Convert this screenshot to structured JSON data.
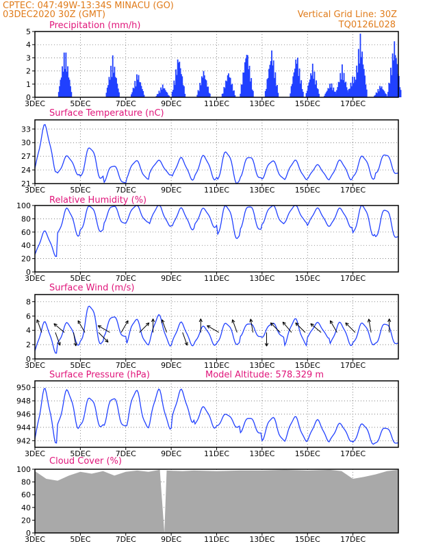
{
  "header": {
    "line1": "CPTEC:   047:49W-13:34S   MINACU (GO)",
    "line2": "03DEC2020 30Z (GMT)",
    "grid_note": "Vertical Grid Line: 30Z",
    "run_code": "TQ0126L028",
    "model_altitude": "Model Altitude: 578.329 m"
  },
  "x_axis": {
    "ticks": [
      "3DEC",
      "5DEC",
      "7DEC",
      "9DEC",
      "11DEC",
      "13DEC",
      "15DEC",
      "17DEC"
    ],
    "tick_days": [
      0,
      2,
      4,
      6,
      8,
      10,
      12,
      14
    ],
    "range_days": [
      0,
      16
    ],
    "grid": true
  },
  "colors": {
    "line": "#2040ff",
    "bars": "#2040ff",
    "cloud": "#a9a9a9",
    "header": "#e07b1a",
    "title": "#e0157a",
    "arrow": "#000000"
  },
  "chart_data": [
    {
      "type": "bar",
      "title": "Precipitation (mm/h)",
      "ylim": [
        0,
        5
      ],
      "yticks": [
        "0",
        "1",
        "2",
        "3",
        "4",
        "5"
      ],
      "bursts": [
        {
          "day": 1.3,
          "peak": 3.9
        },
        {
          "day": 3.4,
          "peak": 3.2
        },
        {
          "day": 4.5,
          "peak": 2.0
        },
        {
          "day": 5.6,
          "peak": 1.0
        },
        {
          "day": 6.3,
          "peak": 3.4
        },
        {
          "day": 7.4,
          "peak": 2.2
        },
        {
          "day": 8.5,
          "peak": 2.1
        },
        {
          "day": 9.3,
          "peak": 3.9
        },
        {
          "day": 10.4,
          "peak": 3.8
        },
        {
          "day": 11.5,
          "peak": 3.5
        },
        {
          "day": 12.2,
          "peak": 2.6
        },
        {
          "day": 13.0,
          "peak": 1.2
        },
        {
          "day": 13.5,
          "peak": 2.5
        },
        {
          "day": 14.0,
          "peak": 1.8
        },
        {
          "day": 14.3,
          "peak": 4.9
        },
        {
          "day": 15.2,
          "peak": 1.0
        },
        {
          "day": 15.8,
          "peak": 4.5
        }
      ]
    },
    {
      "type": "line",
      "title": "Surface Temperature (nC)",
      "ylim": [
        21,
        35
      ],
      "yticks": [
        "21",
        "24",
        "27",
        "30",
        "33"
      ],
      "diurnal": {
        "min": [
          24,
          23,
          22,
          21,
          22,
          23,
          22,
          22,
          21,
          22,
          22,
          22,
          22,
          22,
          22,
          23
        ],
        "max": [
          33.5,
          27,
          29,
          25,
          26,
          26,
          26.5,
          27,
          28,
          27,
          26,
          26,
          25,
          26,
          27,
          27.5
        ]
      }
    },
    {
      "type": "line",
      "title": "Relative Humidity (%)",
      "ylim": [
        0,
        100
      ],
      "yticks": [
        "0",
        "20",
        "40",
        "60",
        "80",
        "100"
      ],
      "diurnal": {
        "min": [
          25,
          55,
          60,
          72,
          75,
          70,
          65,
          68,
          50,
          62,
          72,
          75,
          70,
          68,
          55,
          50
        ],
        "max": [
          60,
          95,
          100,
          100,
          100,
          100,
          95,
          95,
          100,
          100,
          100,
          100,
          95,
          95,
          100,
          95
        ]
      }
    },
    {
      "type": "line",
      "title": "Surface Wind (m/s)",
      "ylim": [
        0,
        9
      ],
      "yticks": [
        "0",
        "2",
        "4",
        "6",
        "8"
      ],
      "diurnal": {
        "min": [
          1,
          2,
          2,
          3,
          2,
          2,
          2,
          2,
          2,
          3,
          3,
          2,
          3,
          2,
          2,
          2
        ],
        "max": [
          5,
          5,
          7.5,
          6,
          5.5,
          6,
          5,
          4.5,
          5,
          5,
          5,
          5.5,
          5,
          5,
          5,
          5
        ]
      },
      "arrows": [
        {
          "day": 0.3,
          "dir": 250
        },
        {
          "day": 0.9,
          "dir": 70
        },
        {
          "day": 1.3,
          "dir": 220
        },
        {
          "day": 1.7,
          "dir": 80
        },
        {
          "day": 2.2,
          "dir": 240
        },
        {
          "day": 2.8,
          "dir": 45
        },
        {
          "day": 3.3,
          "dir": 210
        },
        {
          "day": 3.8,
          "dir": 300
        },
        {
          "day": 4.6,
          "dir": 315
        },
        {
          "day": 5.2,
          "dir": 270
        },
        {
          "day": 5.8,
          "dir": 250
        },
        {
          "day": 6.5,
          "dir": 70
        },
        {
          "day": 7.3,
          "dir": 270
        },
        {
          "day": 8.1,
          "dir": 210
        },
        {
          "day": 8.9,
          "dir": 250
        },
        {
          "day": 9.6,
          "dir": 260
        },
        {
          "day": 10.2,
          "dir": 90
        },
        {
          "day": 10.8,
          "dir": 225
        },
        {
          "day": 11.3,
          "dir": 230
        },
        {
          "day": 11.9,
          "dir": 225
        },
        {
          "day": 12.6,
          "dir": 220
        },
        {
          "day": 13.3,
          "dir": 240
        },
        {
          "day": 14.1,
          "dir": 225
        },
        {
          "day": 14.8,
          "dir": 260
        },
        {
          "day": 15.6,
          "dir": 270
        }
      ]
    },
    {
      "type": "line",
      "title": "Surface Pressure (hPa)",
      "ylim": [
        941,
        951
      ],
      "yticks": [
        "942",
        "944",
        "946",
        "948",
        "950"
      ],
      "diurnal": {
        "min": [
          942,
          944,
          944,
          944,
          944,
          944,
          945,
          944,
          944,
          943,
          942,
          942,
          942,
          942,
          941.5,
          941.5
        ],
        "max": [
          949.5,
          949.5,
          948.5,
          948.5,
          949.5,
          949.5,
          949.5,
          947,
          946,
          945.5,
          945.5,
          945.5,
          945,
          944.5,
          944.5,
          944
        ]
      }
    },
    {
      "type": "area",
      "title": "Cloud Cover (%)",
      "ylim": [
        0,
        100
      ],
      "yticks": [
        "0",
        "20",
        "40",
        "60",
        "80",
        "100"
      ],
      "points": [
        [
          0,
          97
        ],
        [
          0.5,
          85
        ],
        [
          1.0,
          82
        ],
        [
          1.5,
          90
        ],
        [
          2.0,
          96
        ],
        [
          2.5,
          93
        ],
        [
          3.0,
          97
        ],
        [
          3.5,
          90
        ],
        [
          4.0,
          96
        ],
        [
          4.5,
          98
        ],
        [
          5.0,
          96
        ],
        [
          5.5,
          99
        ],
        [
          5.7,
          0
        ],
        [
          5.8,
          98
        ],
        [
          6.5,
          97
        ],
        [
          7.0,
          98
        ],
        [
          8.0,
          97
        ],
        [
          9.0,
          98
        ],
        [
          10.0,
          98
        ],
        [
          11.0,
          99
        ],
        [
          12.0,
          98
        ],
        [
          13.0,
          99
        ],
        [
          13.5,
          97
        ],
        [
          14.0,
          85
        ],
        [
          14.5,
          88
        ],
        [
          15.0,
          92
        ],
        [
          15.5,
          97
        ],
        [
          16.0,
          99
        ]
      ]
    }
  ]
}
